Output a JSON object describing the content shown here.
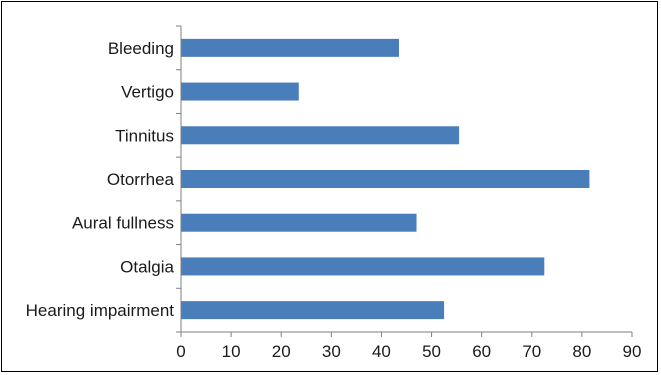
{
  "chart_data": {
    "type": "bar",
    "orientation": "horizontal",
    "categories": [
      "Bleeding",
      "Vertigo",
      "Tinnitus",
      "Otorrhea",
      "Aural fullness",
      "Otalgia",
      "Hearing impairment"
    ],
    "values": [
      43.5,
      23.5,
      55.5,
      81.5,
      47.0,
      72.5,
      52.5
    ],
    "xlim": [
      0,
      90
    ],
    "xticks": [
      "0",
      "10",
      "20",
      "30",
      "40",
      "50",
      "60",
      "70",
      "80",
      "90"
    ],
    "title": "",
    "xlabel": "",
    "ylabel": "",
    "grid": false,
    "legend": "none",
    "bar_color": "#4a7ebb"
  }
}
